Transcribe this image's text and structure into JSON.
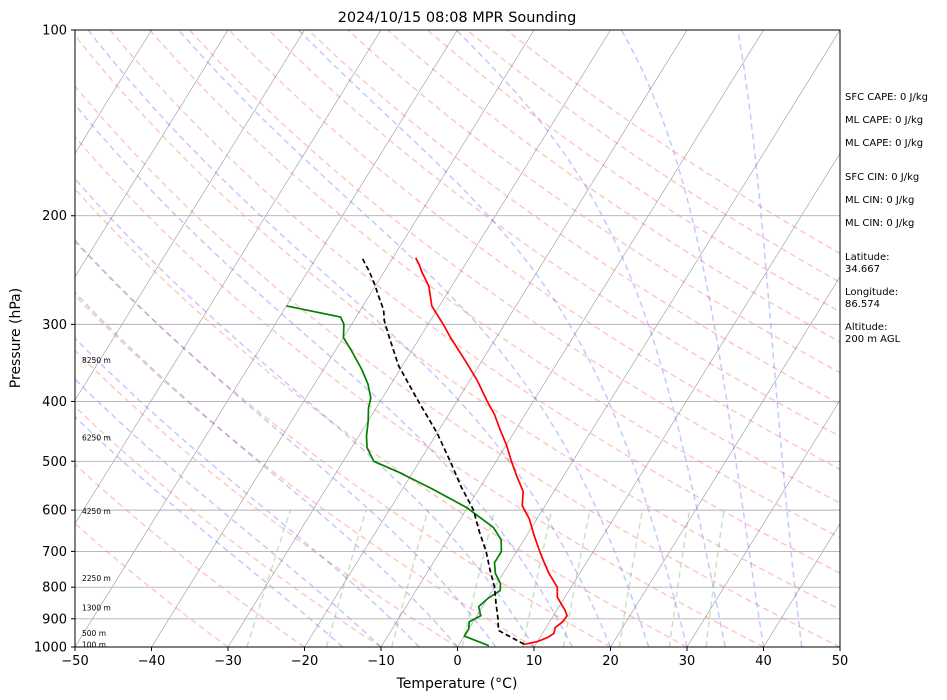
{
  "chart_data": {
    "type": "line",
    "title": "2024/10/15 08:08 MPR Sounding",
    "xlabel": "Temperature (°C)",
    "ylabel": "Pressure (hPa)",
    "xlim": [
      -50,
      50
    ],
    "ylim": [
      1000,
      100
    ],
    "y_scale": "log",
    "x_ticks": [
      -50,
      -40,
      -30,
      -20,
      -10,
      0,
      10,
      20,
      30,
      40,
      50
    ],
    "y_ticks": [
      100,
      200,
      300,
      400,
      500,
      600,
      700,
      800,
      900,
      1000
    ],
    "grid": "horizontal",
    "series": [
      {
        "role": "temperature",
        "color": "#ff0000",
        "points": [
          [
            8.5,
            990
          ],
          [
            10,
            980
          ],
          [
            11,
            965
          ],
          [
            11.5,
            950
          ],
          [
            11.2,
            930
          ],
          [
            11.7,
            910
          ],
          [
            11.8,
            890
          ],
          [
            11,
            870
          ],
          [
            10,
            850
          ],
          [
            9,
            830
          ],
          [
            8.2,
            800
          ],
          [
            6,
            760
          ],
          [
            4,
            720
          ],
          [
            3,
            700
          ],
          [
            1,
            660
          ],
          [
            -1,
            620
          ],
          [
            -3,
            590
          ],
          [
            -4,
            560
          ],
          [
            -6,
            530
          ],
          [
            -8,
            500
          ],
          [
            -10,
            470
          ],
          [
            -12,
            445
          ],
          [
            -14,
            420
          ],
          [
            -16,
            400
          ],
          [
            -19,
            370
          ],
          [
            -22,
            345
          ],
          [
            -26,
            315
          ],
          [
            -28,
            300
          ],
          [
            -31,
            280
          ],
          [
            -33,
            260
          ],
          [
            -35,
            247
          ],
          [
            -36,
            240
          ],
          [
            -37,
            234
          ]
        ]
      },
      {
        "role": "dewpoint",
        "color": "#008000",
        "points": [
          [
            4,
            995
          ],
          [
            0,
            960
          ],
          [
            0,
            935
          ],
          [
            -0.5,
            910
          ],
          [
            0.5,
            890
          ],
          [
            -0.5,
            860
          ],
          [
            0,
            835
          ],
          [
            1,
            810
          ],
          [
            0.5,
            790
          ],
          [
            -1,
            760
          ],
          [
            -2,
            730
          ],
          [
            -2,
            700
          ],
          [
            -3,
            670
          ],
          [
            -5,
            640
          ],
          [
            -10,
            595
          ],
          [
            -16,
            555
          ],
          [
            -22,
            520
          ],
          [
            -26,
            500
          ],
          [
            -28,
            475
          ],
          [
            -29,
            455
          ],
          [
            -30,
            430
          ],
          [
            -31,
            410
          ],
          [
            -31.5,
            395
          ],
          [
            -33,
            375
          ],
          [
            -35,
            355
          ],
          [
            -38,
            330
          ],
          [
            -40,
            315
          ],
          [
            -41,
            300
          ],
          [
            -42,
            292
          ],
          [
            -50,
            280
          ]
        ]
      },
      {
        "role": "parcel",
        "color": "#000000",
        "dashed": true,
        "points": [
          [
            8.5,
            990
          ],
          [
            4,
            940
          ],
          [
            3,
            900
          ],
          [
            1.5,
            850
          ],
          [
            0,
            800
          ],
          [
            -2,
            750
          ],
          [
            -4,
            700
          ],
          [
            -6.5,
            650
          ],
          [
            -9,
            600
          ],
          [
            -12.5,
            550
          ],
          [
            -16,
            500
          ],
          [
            -20,
            450
          ],
          [
            -25,
            400
          ],
          [
            -30.5,
            350
          ],
          [
            -34,
            315
          ],
          [
            -36,
            296
          ],
          [
            -37,
            284
          ],
          [
            -38,
            276
          ],
          [
            -39,
            268
          ],
          [
            -40,
            260
          ],
          [
            -42,
            246
          ],
          [
            -43,
            240
          ],
          [
            -44,
            234
          ]
        ]
      }
    ],
    "height_labels": [
      {
        "label": "100 m",
        "p": 993
      },
      {
        "label": "500 m",
        "p": 950
      },
      {
        "label": "1300 m",
        "p": 865
      },
      {
        "label": "2250 m",
        "p": 775
      },
      {
        "label": "4250 m",
        "p": 603
      },
      {
        "label": "6250 m",
        "p": 458
      },
      {
        "label": "8250 m",
        "p": 343
      }
    ],
    "dry_adiabats_theta_C": [
      -30,
      -20,
      -10,
      0,
      10,
      20,
      30,
      40,
      50,
      60,
      70,
      80,
      90,
      100,
      110,
      120,
      130,
      140,
      150,
      160,
      170
    ],
    "moist_adiabats_T0_C": [
      -15,
      -10,
      -5,
      0,
      5,
      10,
      15,
      20,
      25,
      30,
      35,
      40,
      45
    ],
    "mixing_ratios_gkg": [
      0.4,
      1,
      2,
      4,
      7,
      10,
      16,
      24,
      32
    ],
    "isotherms_C": [
      -100,
      -90,
      -80,
      -70,
      -60,
      -50,
      -40,
      -30,
      -20,
      -10,
      0,
      10,
      20,
      30,
      40,
      50
    ]
  },
  "info": {
    "sfc_cape": "SFC CAPE: 0 J/kg",
    "ml_cape_1": "ML CAPE: 0 J/kg",
    "ml_cape_2": "ML CAPE: 0 J/kg",
    "sfc_cin": "SFC CIN: 0 J/kg",
    "ml_cin_1": "ML CIN: 0 J/kg",
    "ml_cin_2": "ML CIN: 0 J/kg",
    "latitude_label": "Latitude:",
    "latitude": "34.667",
    "longitude_label": "Longitude:",
    "longitude": "86.574",
    "altitude_label": "Altitude:",
    "altitude": "200 m AGL"
  }
}
